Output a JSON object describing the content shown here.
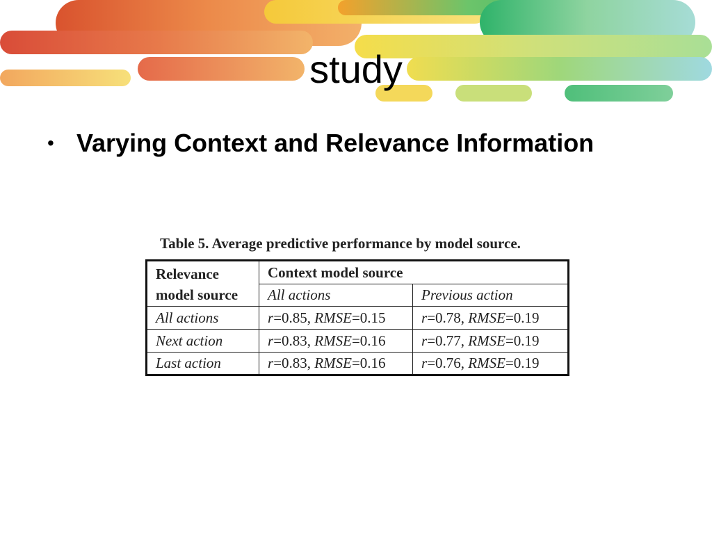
{
  "slide": {
    "title": "study",
    "bullet": "Varying Context and Relevance Information"
  },
  "table": {
    "caption": "Table 5. Average predictive performance by model source.",
    "corner_line1": "Relevance",
    "corner_line2": "model source",
    "group_header": "Context model source",
    "columns": [
      "All actions",
      "Previous action"
    ],
    "rows": [
      {
        "label": "All actions",
        "cells": [
          {
            "r": "0.85",
            "rmse": "0.15"
          },
          {
            "r": "0.78",
            "rmse": "0.19"
          }
        ]
      },
      {
        "label": "Next action",
        "cells": [
          {
            "r": "0.83",
            "rmse": "0.16"
          },
          {
            "r": "0.77",
            "rmse": "0.19"
          }
        ]
      },
      {
        "label": "Last action",
        "cells": [
          {
            "r": "0.83",
            "rmse": "0.16"
          },
          {
            "r": "0.76",
            "rmse": "0.19"
          }
        ]
      }
    ]
  },
  "theme": {
    "banner_colors": [
      "#e8452c",
      "#f08a2c",
      "#f5c93a",
      "#f0e06a",
      "#cfe07a",
      "#8ed27a",
      "#3fbf6e",
      "#9fd9e0"
    ]
  }
}
